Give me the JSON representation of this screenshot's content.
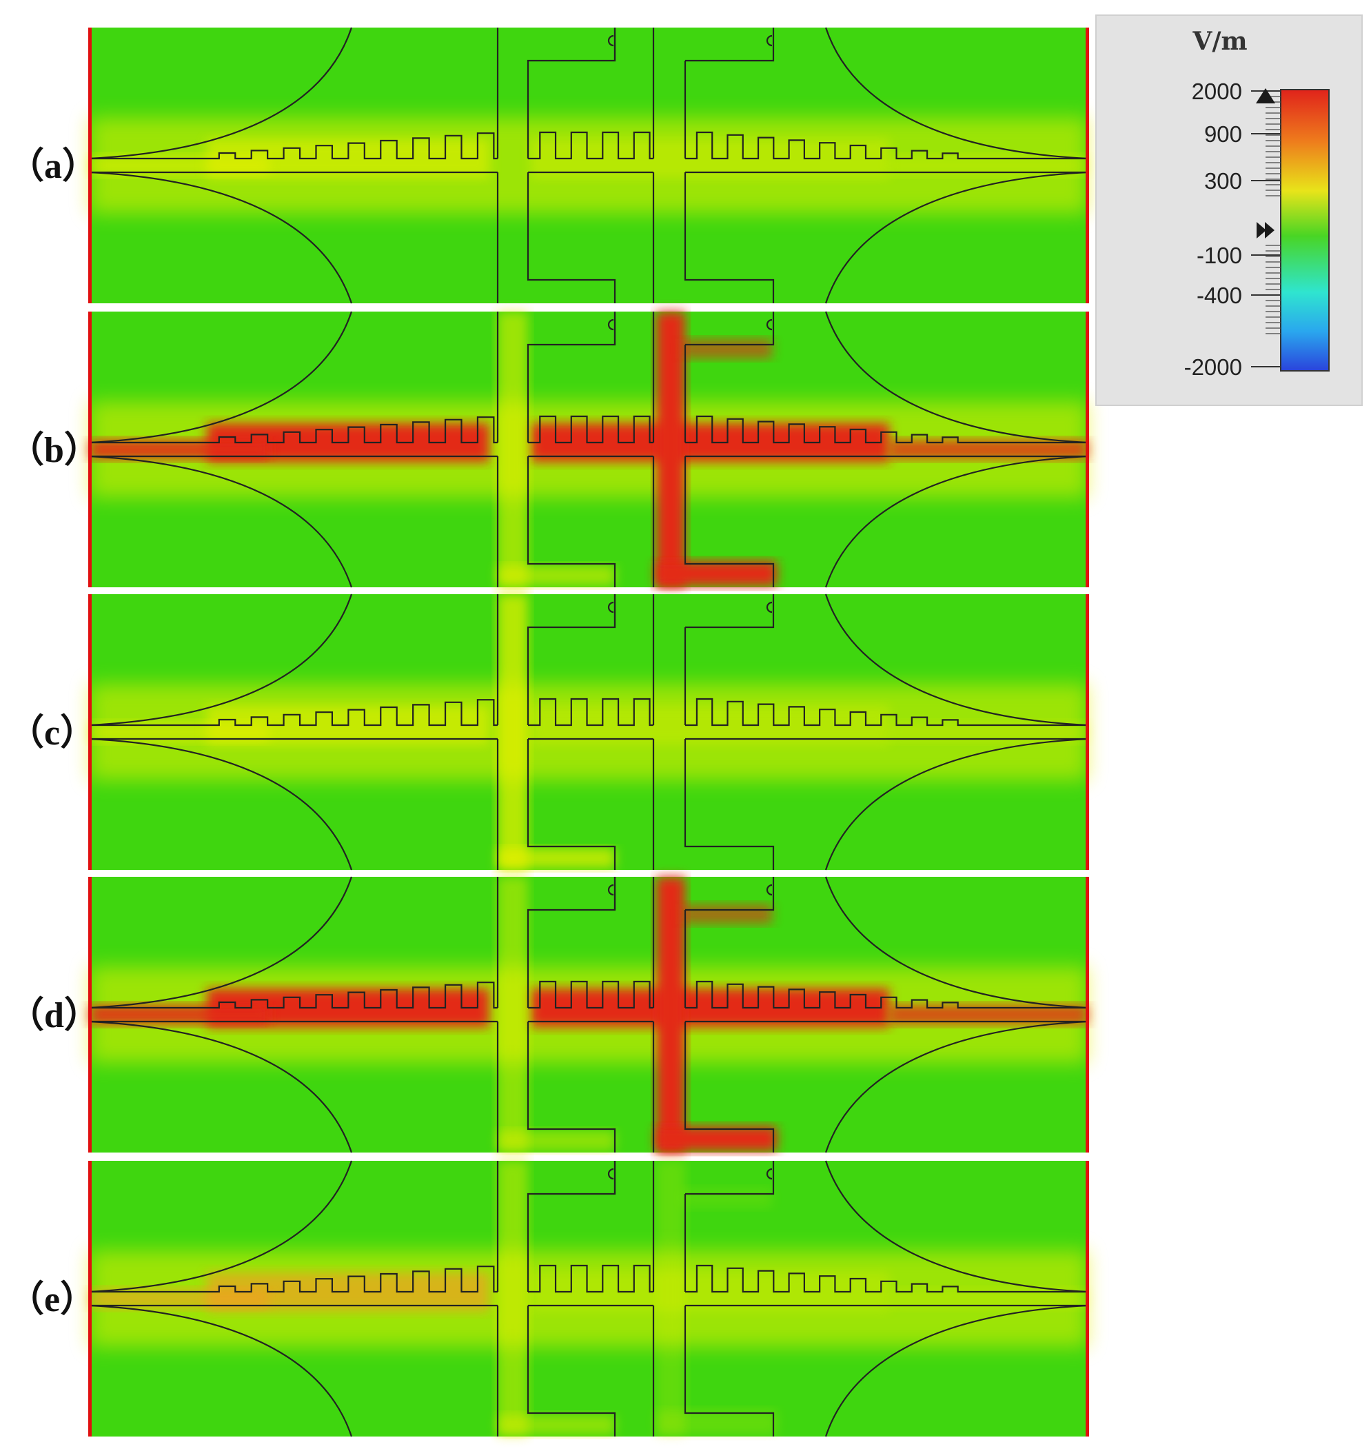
{
  "panels": [
    {
      "label": "（a）"
    },
    {
      "label": "（b）"
    },
    {
      "label": "（c）"
    },
    {
      "label": "（d）"
    },
    {
      "label": "（e）"
    }
  ],
  "colorbar": {
    "unit": "V/m",
    "ticks": [
      "2000",
      "900",
      "300",
      "-100",
      "-400",
      "-2000"
    ]
  },
  "colors": {
    "field_low": "#3fd60f",
    "field_mid": "#e8f000",
    "field_high": "#e32a12",
    "outline": "#222222",
    "edge": "#e01010"
  }
}
